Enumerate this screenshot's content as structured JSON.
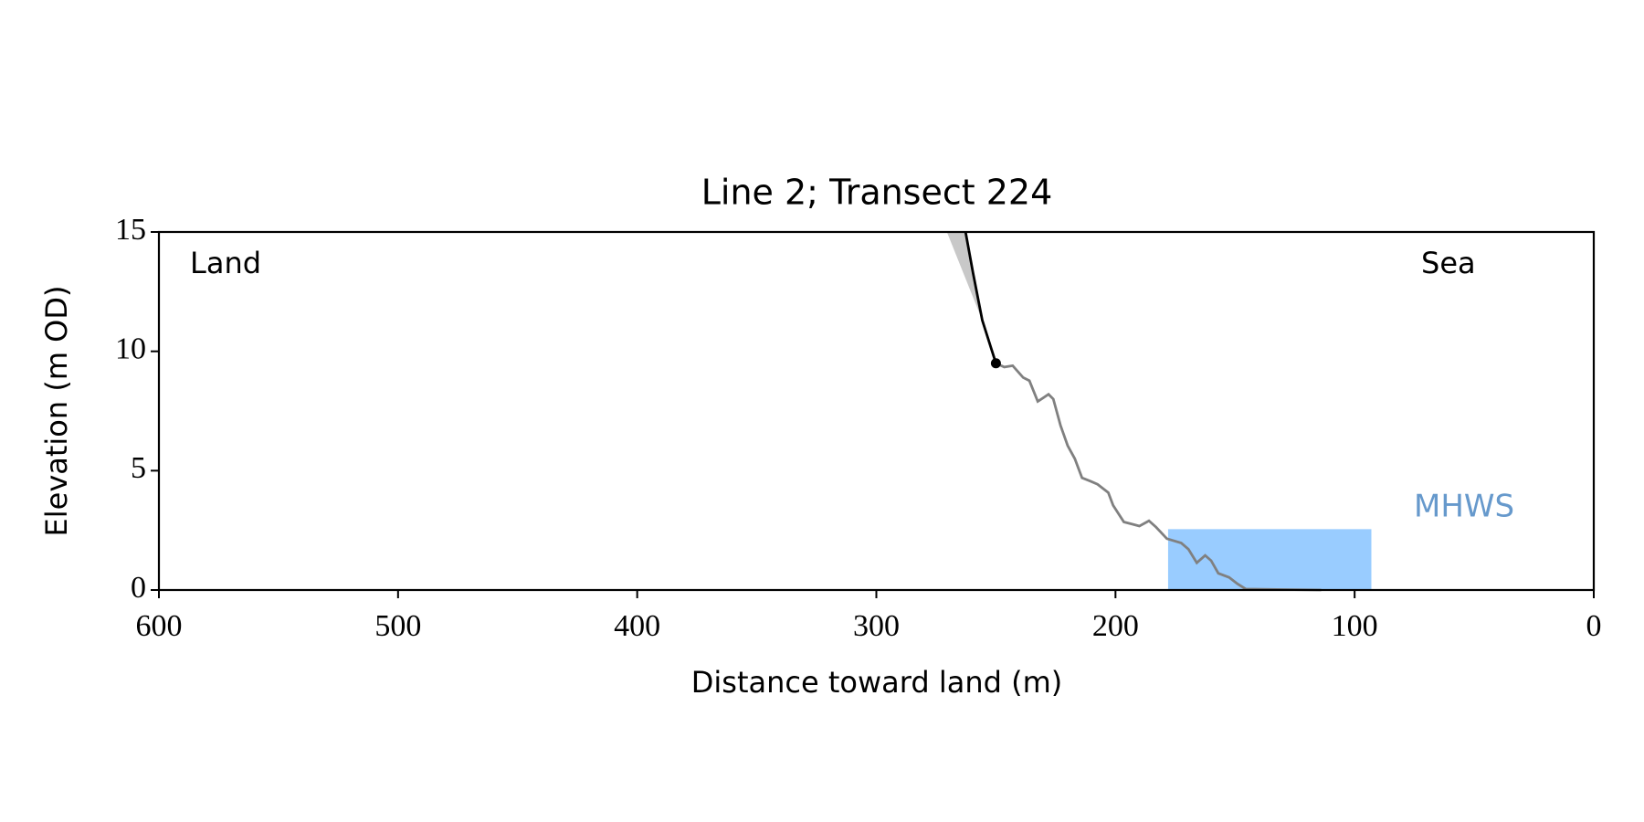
{
  "chart_data": {
    "type": "line",
    "title": "Line 2; Transect 224",
    "x_label": "Distance toward land (m)",
    "y_label": "Elevation (m OD)",
    "xlim": [
      600,
      0
    ],
    "ylim": [
      0,
      15
    ],
    "xticks": [
      600,
      500,
      400,
      300,
      200,
      100,
      0
    ],
    "yticks": [
      0,
      5,
      10,
      15
    ],
    "annotations": [
      "Land",
      "Sea"
    ],
    "shade": {
      "color": "#c8c8c8",
      "x": [
        270.5,
        262.7,
        255.7
      ],
      "values": [
        15,
        15,
        11.3
      ]
    },
    "series": [
      {
        "color": "#808080",
        "x": [
          250,
          246.5,
          243,
          238.6,
          236,
          232.5,
          228,
          226,
          223,
          220,
          217,
          214,
          210.5,
          207.5,
          203,
          201,
          196.5,
          193,
          190,
          186,
          183,
          178.5,
          172.5,
          169.5,
          166,
          162.5,
          160,
          157,
          152.5,
          149,
          145.5,
          114
        ],
        "values": [
          9.5,
          9.34,
          9.4,
          8.9,
          8.77,
          7.9,
          8.2,
          8.0,
          6.9,
          6.05,
          5.5,
          4.7,
          4.56,
          4.43,
          4.08,
          3.55,
          2.85,
          2.76,
          2.68,
          2.9,
          2.63,
          2.15,
          1.97,
          1.71,
          1.14,
          1.45,
          1.23,
          0.7,
          0.53,
          0.26,
          0.04,
          0
        ]
      },
      {
        "color": "#000000",
        "end_marker": true,
        "x": [
          262.7,
          259.6,
          255.7,
          250
        ],
        "values": [
          15,
          13.3,
          11.3,
          9.5
        ]
      }
    ],
    "mhws": {
      "label": "MHWS",
      "level": 2.55,
      "x": [
        178,
        93
      ],
      "color": "#99ccff",
      "label_color": "#6699cc"
    }
  }
}
